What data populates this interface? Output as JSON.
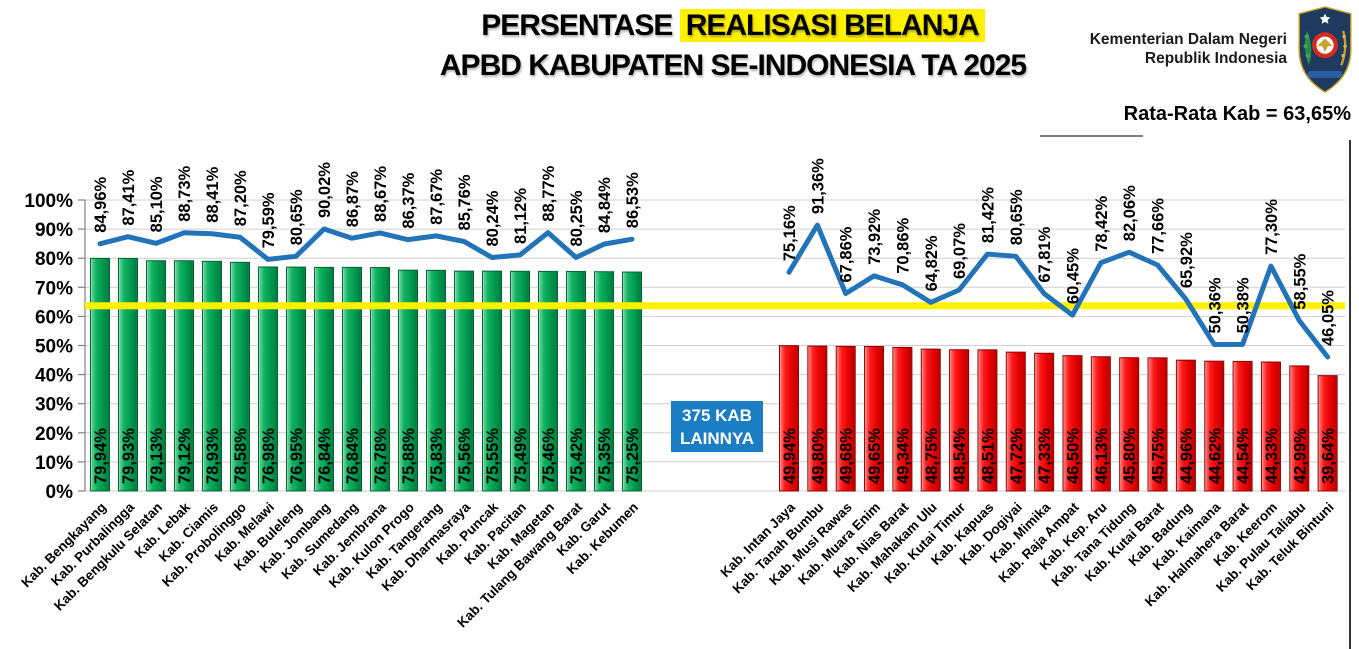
{
  "header": {
    "title_prefix": "PERSENTASE ",
    "title_highlight": "REALISASI BELANJA",
    "title_line2": "APBD KABUPATEN SE-INDONESIA TA 2025",
    "agency_line1": "Kementerian Dalam Negeri",
    "agency_line2": "Republik Indonesia",
    "average_callout": "Rata-Rata Kab = 63,65%"
  },
  "callout": {
    "line1": "375 KAB",
    "line2": "LAINNYA"
  },
  "colors": {
    "bar_green": "#00A04F",
    "bar_green_edge": "#00652F",
    "bar_red": "#F50000",
    "bar_red_edge": "#8F0000",
    "line_blue": "#2273B8",
    "avg_line_yellow": "#FFF100",
    "title_highlight_yellow": "#FFF100",
    "callout_blue": "#1B7DC4",
    "gridline_gray": "#CFCFCF",
    "axis_gray": "#808080",
    "logo_navy": "#1E3A5F"
  },
  "chart_data": {
    "type": "bar",
    "subtype": "bars with overlaid line, two groups separated by gap",
    "title": "PERSENTASE REALISASI BELANJA APBD KABUPATEN SE-INDONESIA TA 2025",
    "ylim": [
      0,
      100
    ],
    "yticks": [
      "0%",
      "10%",
      "20%",
      "30%",
      "40%",
      "50%",
      "60%",
      "70%",
      "80%",
      "90%",
      "100%"
    ],
    "grid": true,
    "legend": "none",
    "value_format": "comma-decimal percent, two decimals",
    "average_line": {
      "label": "Rata-Rata Kab",
      "value": 63.65
    },
    "gap_callout": "375 KAB LAINNYA",
    "groups": [
      {
        "name": "left_group_green",
        "bar_color": "green",
        "categories": [
          "Kab. Bengkayang",
          "Kab. Purbalingga",
          "Kab. Bengkulu Selatan",
          "Kab. Lebak",
          "Kab. Ciamis",
          "Kab. Probolinggo",
          "Kab. Melawi",
          "Kab. Buleleng",
          "Kab. Jombang",
          "Kab. Sumedang",
          "Kab. Jembrana",
          "Kab. Kulon Progo",
          "Kab. Tangerang",
          "Kab. Dharmasraya",
          "Kab. Puncak",
          "Kab. Pacitan",
          "Kab. Magetan",
          "Kab. Tulang Bawang Barat",
          "Kab. Garut",
          "Kab. Kebumen"
        ],
        "bar_values": [
          79.94,
          79.93,
          79.13,
          79.12,
          78.93,
          78.58,
          76.98,
          76.95,
          76.84,
          76.84,
          76.78,
          75.88,
          75.83,
          75.56,
          75.55,
          75.49,
          75.46,
          75.42,
          75.35,
          75.25
        ],
        "line_values": [
          84.96,
          87.41,
          85.1,
          88.73,
          88.41,
          87.2,
          79.59,
          80.65,
          90.02,
          86.87,
          88.67,
          86.37,
          87.67,
          85.76,
          80.24,
          81.12,
          88.77,
          80.25,
          84.84,
          86.53
        ]
      },
      {
        "name": "right_group_red",
        "bar_color": "red",
        "categories": [
          "Kab. Intan Jaya",
          "Kab. Tanah Bumbu",
          "Kab. Musi Rawas",
          "Kab. Muara Enim",
          "Kab. Nias Barat",
          "Kab. Mahakam Ulu",
          "Kab. Kutai Timur",
          "Kab. Kapuas",
          "Kab. Dogiyai",
          "Kab. Mimika",
          "Kab. Raja Ampat",
          "Kab. Kep. Aru",
          "Kab. Tana Tidung",
          "Kab. Kutai Barat",
          "Kab. Badung",
          "Kab. Kaimana",
          "Kab. Halmahera Barat",
          "Kab. Keerom",
          "Kab. Pulau Taliabu",
          "Kab. Teluk Bintuni"
        ],
        "bar_values": [
          49.94,
          49.8,
          49.68,
          49.65,
          49.34,
          48.75,
          48.54,
          48.51,
          47.72,
          47.33,
          46.5,
          46.13,
          45.8,
          45.75,
          44.96,
          44.62,
          44.54,
          44.33,
          42.99,
          39.64
        ],
        "line_values": [
          75.16,
          91.36,
          67.86,
          73.92,
          70.86,
          64.82,
          69.07,
          81.42,
          80.65,
          67.81,
          60.45,
          78.42,
          82.06,
          77.66,
          65.92,
          50.36,
          50.38,
          77.3,
          58.55,
          46.05
        ]
      }
    ]
  }
}
